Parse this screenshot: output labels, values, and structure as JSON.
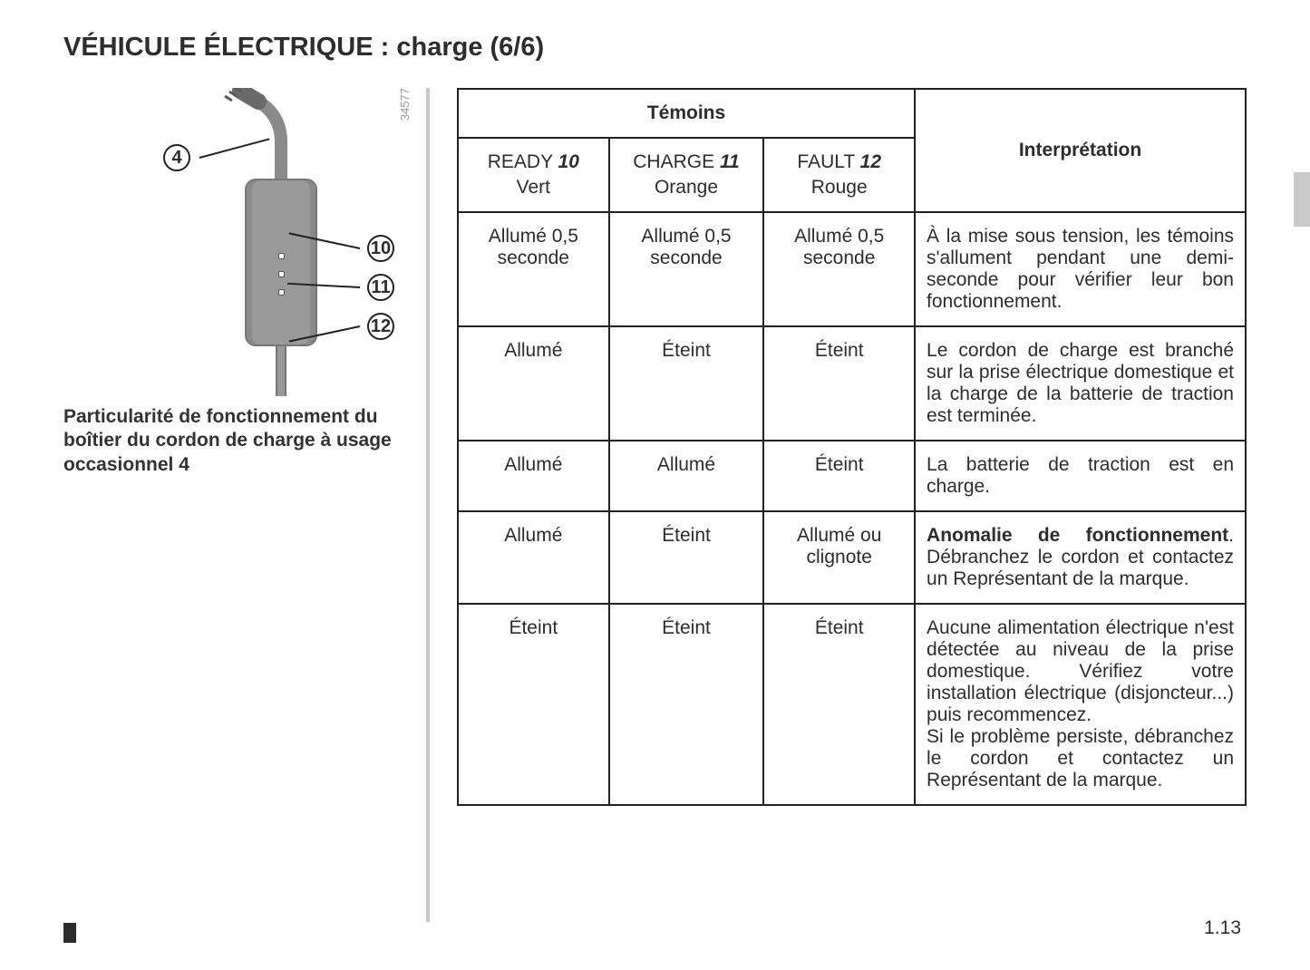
{
  "page": {
    "title": "VÉHICULE ÉLECTRIQUE : charge (6/6)",
    "number": "1.13",
    "figure_ref": "34577"
  },
  "figure": {
    "callouts": {
      "c4": "4",
      "c10": "10",
      "c11": "11",
      "c12": "12"
    },
    "caption": "Particularité de fonctionnement du boîtier du cordon de charge à usage occasionnel 4"
  },
  "table": {
    "group_header": "Témoins",
    "interp_header": "Interprétation",
    "subheaders": [
      {
        "name": "READY",
        "num": "10",
        "color": "Vert"
      },
      {
        "name": "CHARGE",
        "num": "11",
        "color": "Orange"
      },
      {
        "name": "FAULT",
        "num": "12",
        "color": "Rouge"
      }
    ],
    "rows": [
      {
        "cells": [
          "Allumé 0,5 seconde",
          "Allumé 0,5 seconde",
          "Allumé 0,5 seconde"
        ],
        "interp": "À la mise sous tension, les témoins s'allument pendant une demi-seconde pour vérifier leur bon fonctionnement."
      },
      {
        "cells": [
          "Allumé",
          "Éteint",
          "Éteint"
        ],
        "interp": "Le cordon de charge est branché sur la prise électrique domestique et la charge de la batterie de traction est terminée."
      },
      {
        "cells": [
          "Allumé",
          "Allumé",
          "Éteint"
        ],
        "interp": "La batterie de traction est en charge."
      },
      {
        "cells": [
          "Allumé",
          "Éteint",
          "Allumé ou clignote"
        ],
        "interp_bold": "Anomalie de fonctionnement",
        "interp_rest": ". Débranchez le cordon et contactez un Représentant de la marque."
      },
      {
        "cells": [
          "Éteint",
          "Éteint",
          "Éteint"
        ],
        "interp": "Aucune alimentation électrique n'est détectée au niveau de la prise domestique. Vérifiez votre installation électrique (disjoncteur...) puis recommencez.\nSi le problème persiste, débranchez le cordon et contactez un Représentant de la marque."
      }
    ]
  }
}
